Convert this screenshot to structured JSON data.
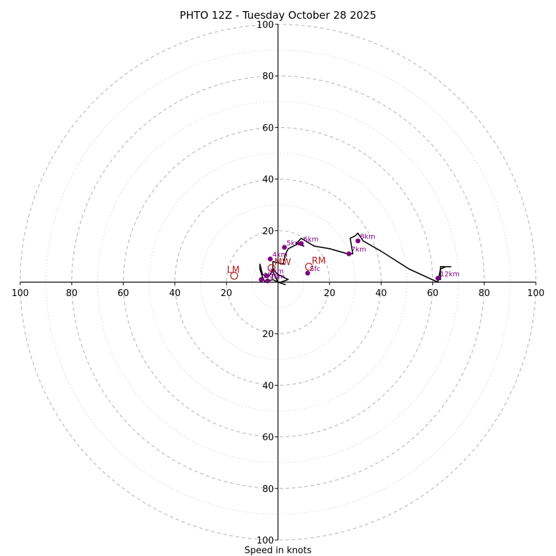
{
  "chart_data": {
    "type": "scatter",
    "title": "PHTO 12Z - Tuesday October 28 2025",
    "xlabel": "Speed in knots",
    "range": [
      -100,
      100
    ],
    "ring_speeds": [
      20,
      40,
      60,
      80,
      100
    ],
    "tick_labels": {
      "x_left": [
        "100",
        "80",
        "60",
        "40",
        "20"
      ],
      "x_right": [
        "20",
        "40",
        "60",
        "80",
        "100"
      ],
      "y_top": [
        "100",
        "80",
        "60",
        "40",
        "20"
      ],
      "y_bottom": [
        "20",
        "40",
        "60",
        "80",
        "100"
      ]
    },
    "hodograph_trace": {
      "line_color": "#000000",
      "u": [
        3,
        0,
        -2,
        -5,
        -6,
        -7,
        -7,
        -6,
        -4,
        -3,
        -2,
        0,
        2,
        4,
        1,
        0,
        -1,
        -2,
        -2,
        2,
        3,
        4,
        8,
        10,
        7,
        9,
        14,
        20,
        27,
        29,
        28,
        30,
        31,
        33,
        40,
        51,
        62,
        63,
        65,
        67,
        64,
        63,
        63,
        62
      ],
      "v": [
        -1,
        0,
        1,
        0,
        2,
        5,
        7,
        3,
        2,
        3,
        5,
        3,
        2,
        1,
        0,
        0,
        2,
        4,
        8,
        7,
        11,
        13,
        15,
        14,
        15,
        17,
        14,
        13,
        11,
        11,
        17,
        18,
        19,
        16,
        12,
        5,
        0,
        5,
        6,
        6,
        6,
        6,
        1,
        1
      ]
    },
    "height_markers": {
      "color": "#800080",
      "points": [
        {
          "label": "Sfc",
          "u": 11.5,
          "v": 3.5
        },
        {
          "label": "1km",
          "u": -4,
          "v": 0.5
        },
        {
          "label": "2km",
          "u": -6.5,
          "v": 1
        },
        {
          "label": "3km",
          "u": -4.5,
          "v": 2.5
        },
        {
          "label": "4km",
          "u": -3,
          "v": 9
        },
        {
          "label": "5km",
          "u": 2.5,
          "v": 13.5
        },
        {
          "label": "6km",
          "u": 9,
          "v": 15
        },
        {
          "label": "7km",
          "u": 27.5,
          "v": 11
        },
        {
          "label": "8km",
          "u": 31,
          "v": 16
        },
        {
          "label": "12km",
          "u": 62,
          "v": 1.5
        }
      ]
    },
    "storm_motions": {
      "color": "#b22222",
      "points": [
        {
          "label": "RM",
          "u": 12,
          "v": 6
        },
        {
          "label": "LM",
          "u": -17,
          "v": 2.5
        },
        {
          "label": "MW",
          "u": -2.5,
          "v": 5.5
        }
      ]
    },
    "grid": true
  }
}
